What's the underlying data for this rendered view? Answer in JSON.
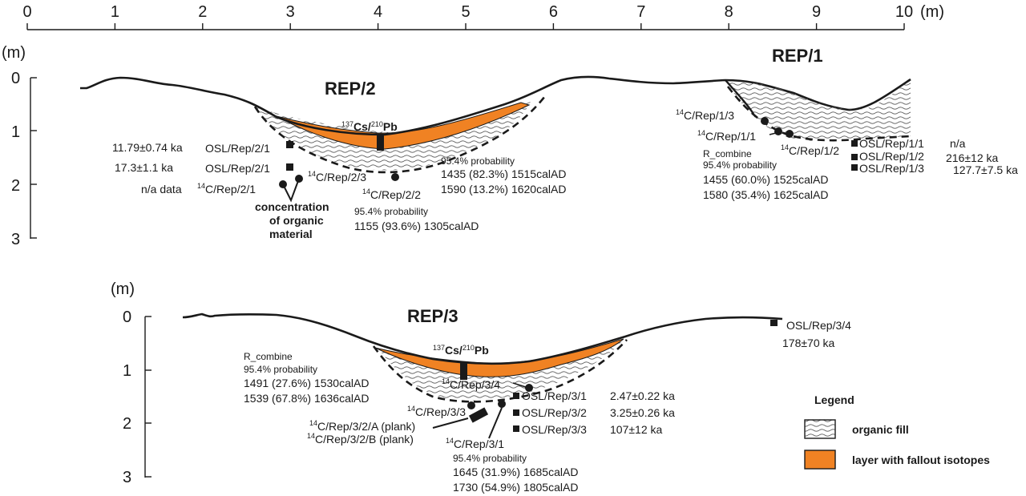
{
  "colors": {
    "organic_fill_lines": "#555555",
    "fallout_layer": "#f08223",
    "ink": "#1a1a1a"
  },
  "icons": {
    "sample_osl": "filled-square",
    "sample_c14": "filled-circle"
  },
  "top_axis": {
    "ticks": [
      "0",
      "1",
      "2",
      "3",
      "4",
      "5",
      "6",
      "7",
      "8",
      "9",
      "10"
    ],
    "unit": "(m)"
  },
  "depth_axis": {
    "unit": "(m)",
    "ticks": [
      "0",
      "1",
      "2",
      "3"
    ]
  },
  "rep2": {
    "title": "REP/2",
    "cs_label": {
      "sup1": "137",
      "mid": "Cs/",
      "sup2": "210",
      "end": "Pb"
    },
    "osl1": "OSL/Rep/2/1",
    "osl1_age": "11.79±0.74 ka",
    "osl2": "OSL/Rep/2/1",
    "osl2_age": "17.3±1.1 ka",
    "c14_1_pre": "14",
    "c14_1": "C/Rep/2/1",
    "c14_1_data": "n/a data",
    "c14_3_pre": "14",
    "c14_3": "C/Rep/2/3",
    "c14_2_pre": "14",
    "c14_2": "C/Rep/2/2",
    "concentration": [
      "concentration",
      "of organic",
      "material"
    ],
    "prob_a": {
      "title": "95.4% probability",
      "lines": [
        "1435 (82.3%) 1515calAD",
        "1590 (13.2%) 1620calAD"
      ]
    },
    "prob_b": {
      "title": "95.4% probability",
      "lines": [
        "1155 (93.6%) 1305calAD"
      ]
    }
  },
  "rep1": {
    "title": "REP/1",
    "c14_3_pre": "14",
    "c14_3": "C/Rep/1/3",
    "c14_1_pre": "14",
    "c14_1": "C/Rep/1/1",
    "c14_2_pre": "14",
    "c14_2": "C/Rep/1/2",
    "combine": {
      "title": "R_combine",
      "sub": "95.4% probability",
      "lines": [
        "1455 (60.0%) 1525calAD",
        "1580 (35.4%) 1625calAD"
      ]
    },
    "osl": [
      {
        "label": "OSL/Rep/1/1",
        "age": "n/a"
      },
      {
        "label": "OSL/Rep/1/2",
        "age": "216±12 ka"
      },
      {
        "label": "OSL/Rep/1/3",
        "age": "127.7±7.5 ka"
      }
    ]
  },
  "rep3": {
    "title": "REP/3",
    "cs_label": {
      "sup1": "137",
      "mid": "Cs/",
      "sup2": "210",
      "end": "Pb"
    },
    "combine": {
      "title": "R_combine",
      "sub": "95.4% probability",
      "lines": [
        "1491 (27.6%) 1530calAD",
        "1539 (67.8%) 1636calAD"
      ]
    },
    "c14_4_pre": "14",
    "c14_4": "C/Rep/3/4",
    "c14_3_pre": "14",
    "c14_3": "C/Rep/3/3",
    "plank_a_pre": "14",
    "plank_a": "C/Rep/3/2/A (plank)",
    "plank_b_pre": "14",
    "plank_b": "C/Rep/3/2/B (plank)",
    "c14_1_pre": "14",
    "c14_1": "C/Rep/3/1",
    "prob": {
      "title": "95.4% probability",
      "lines": [
        "1645 (31.9%) 1685calAD",
        "1730 (54.9%) 1805calAD"
      ]
    },
    "osl": [
      {
        "label": "OSL/Rep/3/1",
        "age": "2.47±0.22 ka"
      },
      {
        "label": "OSL/Rep/3/2",
        "age": "3.25±0.26 ka"
      },
      {
        "label": "OSL/Rep/3/3",
        "age": "107±12 ka"
      }
    ],
    "osl4": "OSL/Rep/3/4",
    "osl4_age": "178±70 ka"
  },
  "legend": {
    "title": "Legend",
    "organic": "organic fill",
    "fallout": "layer with fallout isotopes"
  }
}
